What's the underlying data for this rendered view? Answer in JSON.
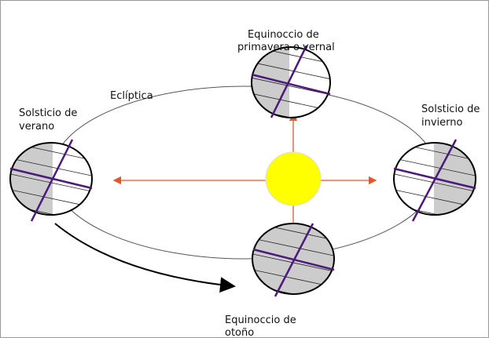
{
  "ecliptic_label": "Eclíptica",
  "labels": {
    "spring": [
      "Equinoccio de",
      "primavera o vernal"
    ],
    "summer": [
      "Solsticio de",
      "verano"
    ],
    "winter": [
      "Solsticio de",
      "invierno"
    ],
    "autumn": [
      "Equinoccio de",
      "otoño"
    ]
  }
}
